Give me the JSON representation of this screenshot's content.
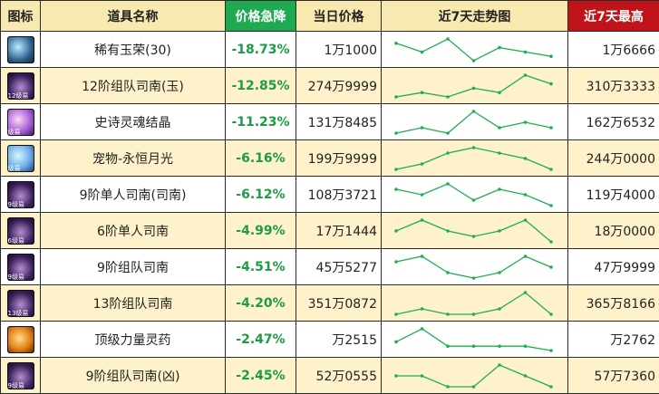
{
  "header": {
    "icon": "图标",
    "name": "道具名称",
    "change": "价格急降",
    "price": "当日价格",
    "trend": "近7天走势图",
    "high": "近7天最高"
  },
  "colors": {
    "accent_green": "#1faa52",
    "accent_red": "#c0141b",
    "row_alt": "#fdf2c9",
    "header_bg": "#f8e9b0",
    "trend_line": "#1fae52"
  },
  "rows": [
    {
      "icon": "gem-icon",
      "badge": "",
      "name": "稀有玉荣(30)",
      "change": "-18.73%",
      "price": "1万1000",
      "high": "1万6666",
      "trend": [
        5,
        3,
        6,
        1,
        4,
        3,
        2
      ]
    },
    {
      "icon": "horse-icon",
      "badge": "12级易",
      "name": "12阶组队司南(玉)",
      "change": "-12.85%",
      "price": "274万9999",
      "high": "310万3333",
      "trend": [
        1,
        2,
        1,
        3,
        2,
        6,
        4
      ]
    },
    {
      "icon": "crystal-icon",
      "badge": "级易",
      "name": "史诗灵魂结晶",
      "change": "-11.23%",
      "price": "131万8485",
      "high": "162万6532",
      "trend": [
        2,
        3,
        2,
        6,
        3,
        4,
        3
      ]
    },
    {
      "icon": "moon-icon",
      "badge": "级易",
      "name": "宠物-永恒月光",
      "change": "-6.16%",
      "price": "199万9999",
      "high": "244万0000",
      "trend": [
        1,
        2,
        4,
        5,
        4,
        3,
        1
      ]
    },
    {
      "icon": "horse-icon",
      "badge": "9级易",
      "name": "9阶单人司南(司南)",
      "change": "-6.12%",
      "price": "108万3721",
      "high": "119万4000",
      "trend": [
        4,
        3,
        5,
        2,
        4,
        3,
        1
      ]
    },
    {
      "icon": "horse-icon",
      "badge": "6级易",
      "name": "6阶单人司南",
      "change": "-4.99%",
      "price": "17万1444",
      "high": "18万0000",
      "trend": [
        3,
        5,
        3,
        2,
        3,
        5,
        1
      ]
    },
    {
      "icon": "horse-icon",
      "badge": "9级易",
      "name": "9阶组队司南",
      "change": "-4.51%",
      "price": "45万5277",
      "high": "47万9999",
      "trend": [
        4,
        5,
        2,
        1,
        2,
        5,
        3
      ]
    },
    {
      "icon": "horse-icon",
      "badge": "13级易",
      "name": "13阶组队司南",
      "change": "-4.20%",
      "price": "351万0872",
      "high": "365万8166",
      "trend": [
        1,
        2,
        1,
        1,
        2,
        5,
        1
      ]
    },
    {
      "icon": "potion-icon",
      "badge": "",
      "name": "顶级力量灵药",
      "change": "-2.47%",
      "price": "万2515",
      "high": "万2762",
      "trend": [
        3,
        6,
        2,
        2,
        2,
        2,
        1
      ]
    },
    {
      "icon": "horse-icon",
      "badge": "9级易",
      "name": "9阶组队司南(凶)",
      "change": "-2.45%",
      "price": "52万0555",
      "high": "57万7360",
      "trend": [
        2,
        2,
        1,
        1,
        3,
        2,
        1
      ]
    }
  ]
}
